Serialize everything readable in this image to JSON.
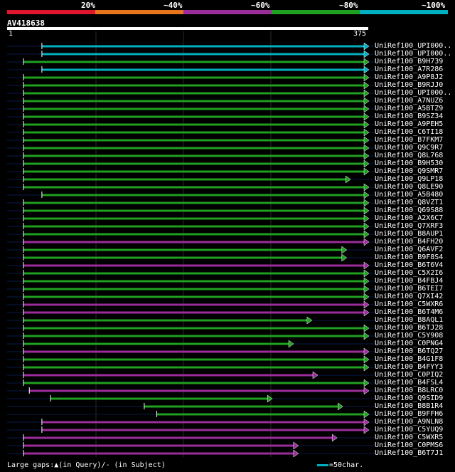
{
  "scale": {
    "labels": [
      "20%",
      "~40%",
      "~60%",
      "~80%",
      "~100%"
    ],
    "colors": [
      "#e0152e",
      "#e8741c",
      "#9b2d9b",
      "#20a020",
      "#00b0c0"
    ]
  },
  "query": {
    "name": "AV418638",
    "start": "1",
    "end": "375"
  },
  "footer": {
    "gaps_label": "Large gaps:▲(in Query)/- (in Subject)",
    "legend_label": "=50char."
  },
  "hits": [
    {
      "name": "UniRef100_UPI000..",
      "color": "#00b0c0",
      "start": 37,
      "end": 375,
      "arrow": true
    },
    {
      "name": "UniRef100_UPI000..",
      "color": "#00b0c0",
      "start": 37,
      "end": 375,
      "arrow": true
    },
    {
      "name": "UniRef100_B9H739",
      "color": "#20a020",
      "start": 18,
      "end": 375,
      "arrow": true
    },
    {
      "name": "UniRef100_A7R286",
      "color": "#00b0c0",
      "start": 37,
      "end": 375,
      "arrow": true
    },
    {
      "name": "UniRef100_A9P8J2",
      "color": "#20a020",
      "start": 18,
      "end": 375,
      "arrow": true
    },
    {
      "name": "UniRef100_B9RJJ0",
      "color": "#20a020",
      "start": 18,
      "end": 375,
      "arrow": true
    },
    {
      "name": "UniRef100_UPI000..",
      "color": "#20a020",
      "start": 18,
      "end": 375,
      "arrow": true
    },
    {
      "name": "UniRef100_A7NUZ6",
      "color": "#20a020",
      "start": 18,
      "end": 375,
      "arrow": true
    },
    {
      "name": "UniRef100_A5BTZ9",
      "color": "#20a020",
      "start": 18,
      "end": 375,
      "arrow": true
    },
    {
      "name": "UniRef100_B9SZ34",
      "color": "#20a020",
      "start": 18,
      "end": 375,
      "arrow": true
    },
    {
      "name": "UniRef100_A9PEH5",
      "color": "#20a020",
      "start": 18,
      "end": 375,
      "arrow": true
    },
    {
      "name": "UniRef100_C6TI18",
      "color": "#20a020",
      "start": 18,
      "end": 375,
      "arrow": true
    },
    {
      "name": "UniRef100_B7FKM7",
      "color": "#20a020",
      "start": 18,
      "end": 375,
      "arrow": true
    },
    {
      "name": "UniRef100_Q9C9R7",
      "color": "#20a020",
      "start": 18,
      "end": 375,
      "arrow": true
    },
    {
      "name": "UniRef100_Q8L768",
      "color": "#20a020",
      "start": 18,
      "end": 375,
      "arrow": true
    },
    {
      "name": "UniRef100_B9H530",
      "color": "#20a020",
      "start": 18,
      "end": 375,
      "arrow": true
    },
    {
      "name": "UniRef100_Q9SMR7",
      "color": "#20a020",
      "start": 18,
      "end": 375,
      "arrow": true
    },
    {
      "name": "UniRef100_Q9LP18",
      "color": "#20a020",
      "start": 18,
      "end": 356,
      "arrow": true
    },
    {
      "name": "UniRef100_Q8LE90",
      "color": "#20a020",
      "start": 18,
      "end": 375,
      "arrow": true
    },
    {
      "name": "UniRef100_A5B480",
      "color": "#20a020",
      "start": 37,
      "end": 375,
      "arrow": true
    },
    {
      "name": "UniRef100_Q8VZT1",
      "color": "#20a020",
      "start": 18,
      "end": 375,
      "arrow": true
    },
    {
      "name": "UniRef100_Q69S88",
      "color": "#20a020",
      "start": 18,
      "end": 375,
      "arrow": true
    },
    {
      "name": "UniRef100_A2X6C7",
      "color": "#20a020",
      "start": 18,
      "end": 375,
      "arrow": true
    },
    {
      "name": "UniRef100_Q7XRF3",
      "color": "#20a020",
      "start": 18,
      "end": 375,
      "arrow": true
    },
    {
      "name": "UniRef100_B8AUP1",
      "color": "#20a020",
      "start": 18,
      "end": 375,
      "arrow": true
    },
    {
      "name": "UniRef100_B4FH20",
      "color": "#9b2d9b",
      "start": 18,
      "end": 375,
      "arrow": true
    },
    {
      "name": "UniRef100_Q6AVF2",
      "color": "#20a020",
      "start": 18,
      "end": 352,
      "arrow": true
    },
    {
      "name": "UniRef100_B9F8S4",
      "color": "#20a020",
      "start": 18,
      "end": 352,
      "arrow": true
    },
    {
      "name": "UniRef100_B6T6V4",
      "color": "#9b2d9b",
      "start": 18,
      "end": 375,
      "arrow": true
    },
    {
      "name": "UniRef100_C5X2I6",
      "color": "#20a020",
      "start": 18,
      "end": 375,
      "arrow": true
    },
    {
      "name": "UniRef100_B4FBJ4",
      "color": "#20a020",
      "start": 18,
      "end": 375,
      "arrow": true
    },
    {
      "name": "UniRef100_B6TEI7",
      "color": "#20a020",
      "start": 18,
      "end": 375,
      "arrow": true
    },
    {
      "name": "UniRef100_Q7XI42",
      "color": "#20a020",
      "start": 18,
      "end": 375,
      "arrow": true
    },
    {
      "name": "UniRef100_C5WXR6",
      "color": "#9b2d9b",
      "start": 18,
      "end": 375,
      "arrow": true
    },
    {
      "name": "UniRef100_B6T4M6",
      "color": "#9b2d9b",
      "start": 18,
      "end": 375,
      "arrow": true
    },
    {
      "name": "UniRef100_B8AQL1",
      "color": "#20a020",
      "start": 18,
      "end": 316,
      "arrow": true
    },
    {
      "name": "UniRef100_B6TJ28",
      "color": "#20a020",
      "start": 18,
      "end": 375,
      "arrow": true
    },
    {
      "name": "UniRef100_C5Y908",
      "color": "#20a020",
      "start": 18,
      "end": 375,
      "arrow": true
    },
    {
      "name": "UniRef100_C0PNG4",
      "color": "#20a020",
      "start": 18,
      "end": 297,
      "arrow": true
    },
    {
      "name": "UniRef100_B6TQ27",
      "color": "#9b2d9b",
      "start": 18,
      "end": 375,
      "arrow": true
    },
    {
      "name": "UniRef100_B4G1F8",
      "color": "#20a020",
      "start": 18,
      "end": 375,
      "arrow": true
    },
    {
      "name": "UniRef100_B4FYY3",
      "color": "#20a020",
      "start": 18,
      "end": 375,
      "arrow": true
    },
    {
      "name": "UniRef100_C0PIQ2",
      "color": "#9b2d9b",
      "start": 18,
      "end": 322,
      "arrow": true
    },
    {
      "name": "UniRef100_B4FSL4",
      "color": "#20a020",
      "start": 18,
      "end": 375,
      "arrow": true
    },
    {
      "name": "UniRef100_B8LRC0",
      "color": "#9b2d9b",
      "start": 24,
      "end": 375,
      "arrow": true
    },
    {
      "name": "UniRef100_Q9SID9",
      "color": "#20a020",
      "start": 46,
      "end": 275,
      "arrow": true
    },
    {
      "name": "UniRef100_B8B1R4",
      "color": "#20a020",
      "start": 143,
      "end": 348,
      "arrow": true
    },
    {
      "name": "UniRef100_B9FFH6",
      "color": "#20a020",
      "start": 156,
      "end": 375,
      "arrow": true
    },
    {
      "name": "UniRef100_A9NLN8",
      "color": "#9b2d9b",
      "start": 37,
      "end": 375,
      "arrow": true
    },
    {
      "name": "UniRef100_C5YUQ9",
      "color": "#9b2d9b",
      "start": 37,
      "end": 375,
      "arrow": true
    },
    {
      "name": "UniRef100_C5WXR5",
      "color": "#9b2d9b",
      "start": 18,
      "end": 342,
      "arrow": true
    },
    {
      "name": "UniRef100_C0PMS6",
      "color": "#9b2d9b",
      "start": 18,
      "end": 302,
      "arrow": true
    },
    {
      "name": "UniRef100_B6T7J1",
      "color": "#9b2d9b",
      "start": 18,
      "end": 302,
      "arrow": true
    }
  ]
}
